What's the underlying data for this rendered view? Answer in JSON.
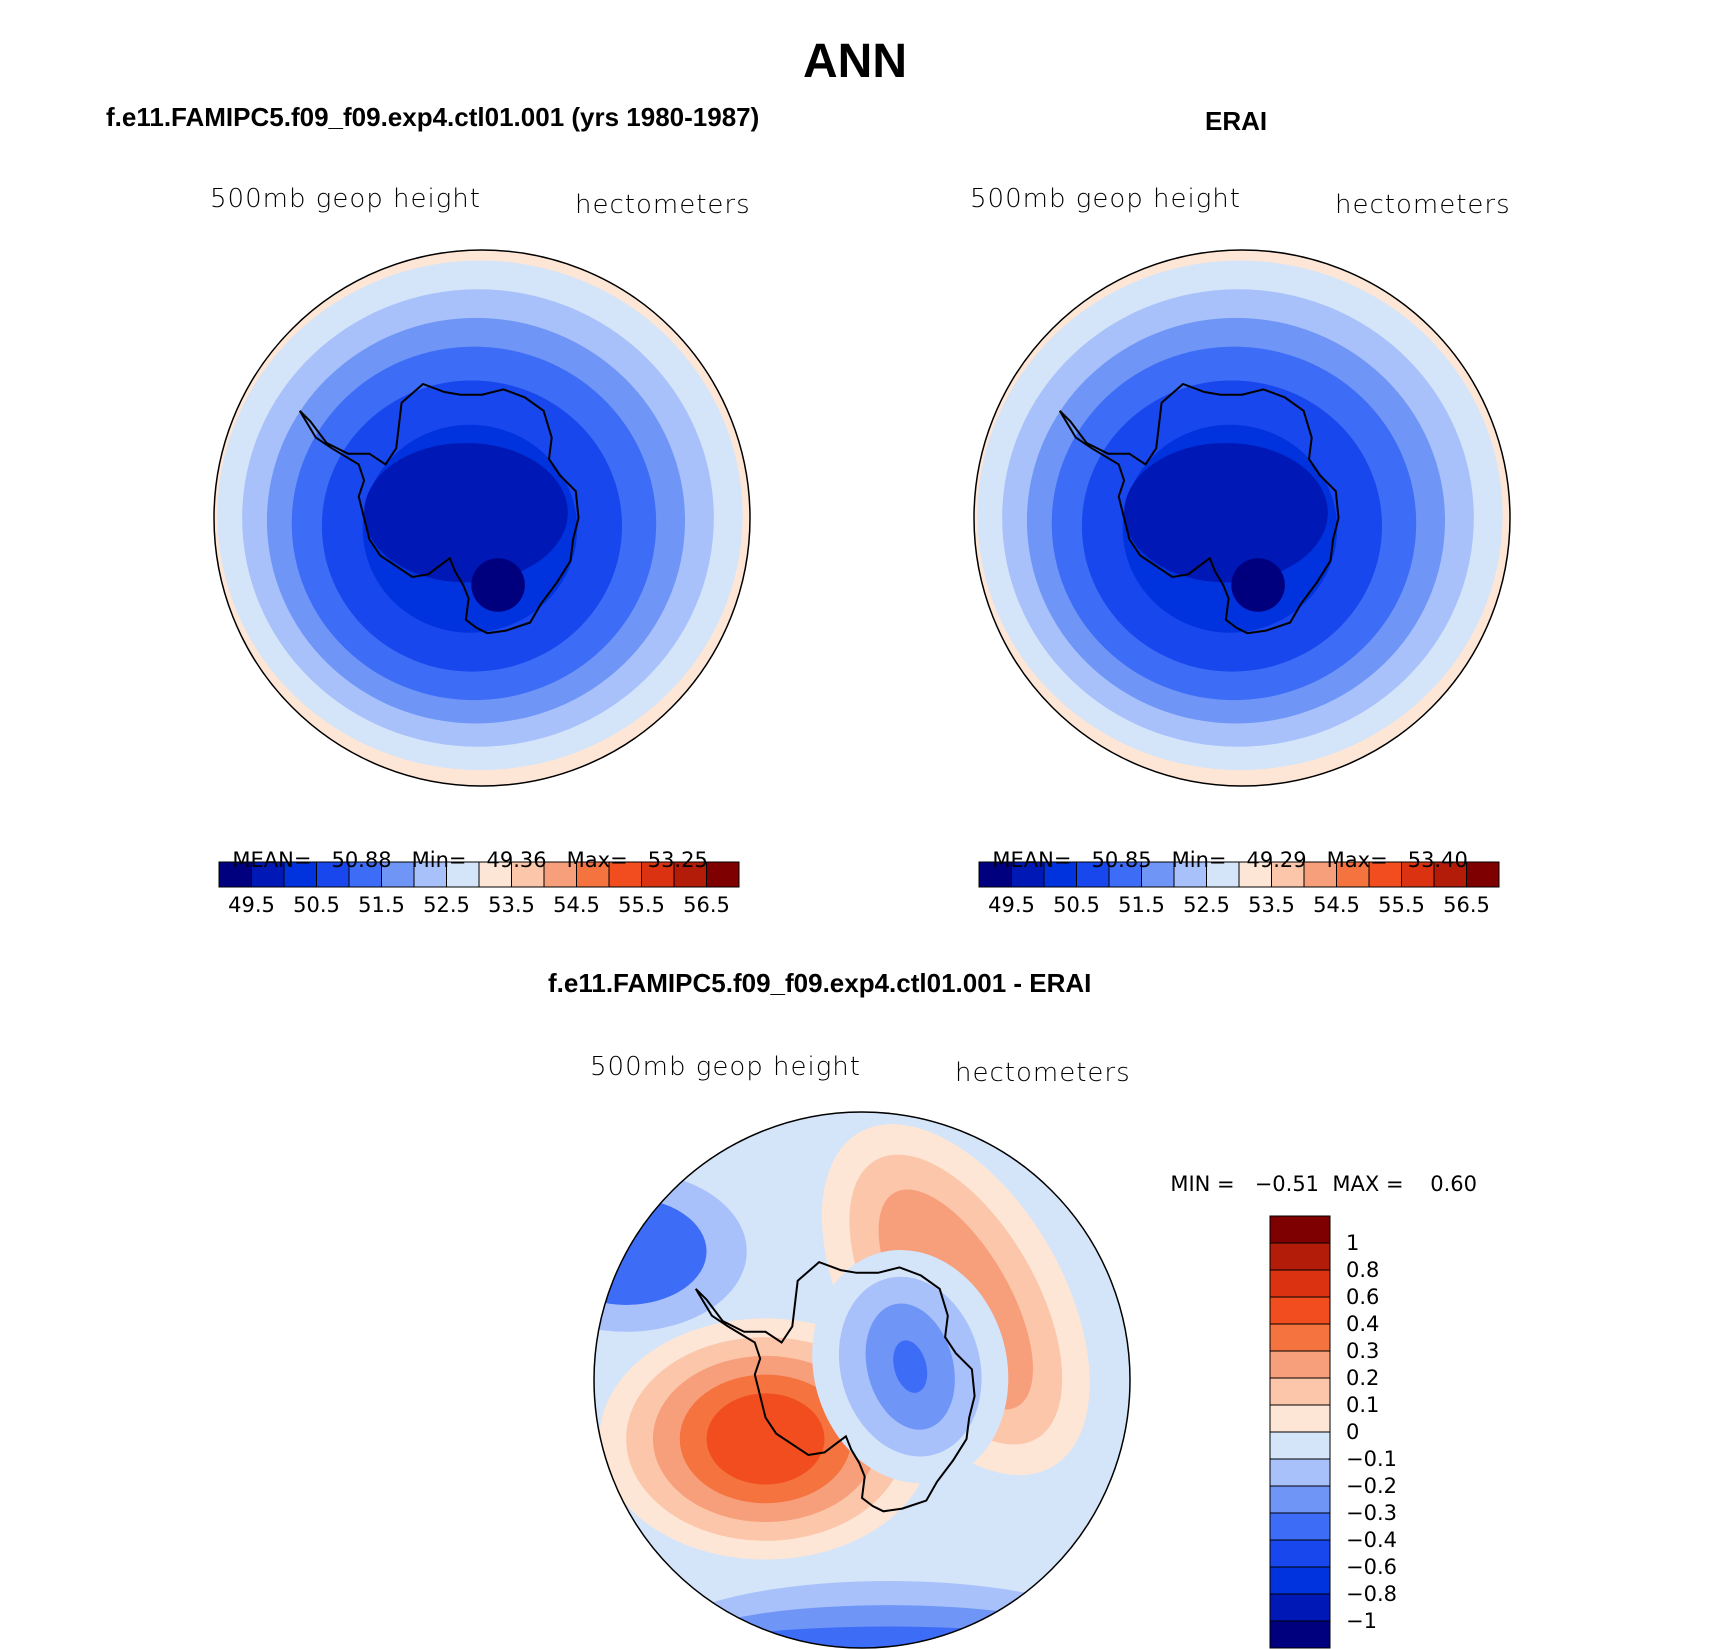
{
  "page": {
    "title": "ANN",
    "model_label": "f.e11.FAMIPC5.f09_f09.exp4.ctl01.001 (yrs 1980-1987)",
    "obs_label": "ERAI",
    "diff_label": "f.e11.FAMIPC5.f09_f09.exp4.ctl01.001 - ERAI"
  },
  "chart_data": [
    {
      "type": "heatmap",
      "projection": "south polar stereographic",
      "title": "f.e11.FAMIPC5.f09_f09.exp4.ctl01.001 (yrs 1980-1987)",
      "left_label": "500mb geop height",
      "right_label": "hectometers",
      "stats": {
        "mean_label": "MEAN=",
        "mean": "50.88",
        "min_label": "Min=",
        "min": "49.36",
        "max_label": "Max=",
        "max": "53.25"
      },
      "colorbar": {
        "orientation": "horizontal",
        "tick_labels": [
          "49.5",
          "50.5",
          "51.5",
          "52.5",
          "53.5",
          "54.5",
          "55.5",
          "56.5"
        ],
        "levels": [
          49.5,
          50,
          50.5,
          51,
          51.5,
          52,
          52.5,
          53,
          53.5,
          54,
          54.5,
          55,
          55.5,
          56,
          56.5
        ],
        "colors": [
          "#00007f",
          "#0018b5",
          "#0033dd",
          "#1947ee",
          "#3d6cf6",
          "#6f95f7",
          "#a8c1fa",
          "#d4e4f9",
          "#fde6d6",
          "#fbc6aa",
          "#f79e7a",
          "#f4733f",
          "#f24d1e",
          "#db3311",
          "#b21c08",
          "#7f0000"
        ]
      }
    },
    {
      "type": "heatmap",
      "projection": "south polar stereographic",
      "title": "ERAI",
      "left_label": "500mb geop height",
      "right_label": "hectometers",
      "stats": {
        "mean_label": "MEAN=",
        "mean": "50.85",
        "min_label": "Min=",
        "min": "49.29",
        "max_label": "Max=",
        "max": "53.40"
      },
      "colorbar": {
        "orientation": "horizontal",
        "tick_labels": [
          "49.5",
          "50.5",
          "51.5",
          "52.5",
          "53.5",
          "54.5",
          "55.5",
          "56.5"
        ],
        "levels": [
          49.5,
          50,
          50.5,
          51,
          51.5,
          52,
          52.5,
          53,
          53.5,
          54,
          54.5,
          55,
          55.5,
          56,
          56.5
        ],
        "colors": [
          "#00007f",
          "#0018b5",
          "#0033dd",
          "#1947ee",
          "#3d6cf6",
          "#6f95f7",
          "#a8c1fa",
          "#d4e4f9",
          "#fde6d6",
          "#fbc6aa",
          "#f79e7a",
          "#f4733f",
          "#f24d1e",
          "#db3311",
          "#b21c08",
          "#7f0000"
        ]
      }
    },
    {
      "type": "heatmap",
      "projection": "south polar stereographic",
      "title": "f.e11.FAMIPC5.f09_f09.exp4.ctl01.001 - ERAI",
      "left_label": "500mb geop height",
      "right_label": "hectometers",
      "stats": {
        "min_label": "MIN =",
        "min": "−0.51",
        "max_label": "MAX =",
        "max": "0.60"
      },
      "colorbar": {
        "orientation": "vertical",
        "tick_labels": [
          "1",
          "0.8",
          "0.6",
          "0.4",
          "0.3",
          "0.2",
          "0.1",
          "0",
          "−0.1",
          "−0.2",
          "−0.3",
          "−0.4",
          "−0.6",
          "−0.8",
          "−1"
        ],
        "levels": [
          1,
          0.8,
          0.6,
          0.4,
          0.3,
          0.2,
          0.1,
          0,
          -0.1,
          -0.2,
          -0.3,
          -0.4,
          -0.6,
          -0.8,
          -1
        ],
        "colors": [
          "#7f0000",
          "#b21c08",
          "#db3311",
          "#f24d1e",
          "#f4733f",
          "#f79e7a",
          "#fbc6aa",
          "#fde6d6",
          "#d4e4f9",
          "#a8c1fa",
          "#6f95f7",
          "#3d6cf6",
          "#1947ee",
          "#0033dd",
          "#0018b5",
          "#00007f"
        ]
      }
    }
  ]
}
